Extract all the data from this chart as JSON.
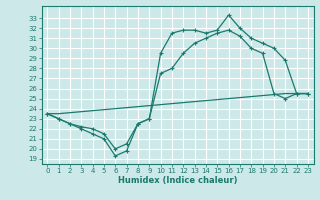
{
  "xlabel": "Humidex (Indice chaleur)",
  "bg_color": "#cde8e8",
  "grid_color": "#ffffff",
  "line_color": "#1a7a6e",
  "xlim": [
    -0.5,
    23.5
  ],
  "ylim": [
    18.5,
    34.2
  ],
  "x_ticks": [
    0,
    1,
    2,
    3,
    4,
    5,
    6,
    7,
    8,
    9,
    10,
    11,
    12,
    13,
    14,
    15,
    16,
    17,
    18,
    19,
    20,
    21,
    22,
    23
  ],
  "y_ticks": [
    19,
    20,
    21,
    22,
    23,
    24,
    25,
    26,
    27,
    28,
    29,
    30,
    31,
    32,
    33
  ],
  "line_upper_x": [
    0,
    1,
    2,
    3,
    4,
    5,
    6,
    7,
    8,
    9,
    10,
    11,
    12,
    13,
    14,
    15,
    16,
    17,
    18,
    19,
    20,
    21,
    22,
    23
  ],
  "line_upper_y": [
    23.5,
    23.0,
    22.5,
    22.0,
    21.5,
    21.0,
    19.3,
    19.8,
    22.5,
    23.0,
    29.5,
    31.5,
    31.8,
    31.8,
    31.5,
    31.8,
    33.3,
    32.0,
    31.0,
    30.5,
    30.0,
    28.8,
    25.5,
    25.5
  ],
  "line_lower_x": [
    0,
    1,
    2,
    3,
    4,
    5,
    6,
    7,
    8,
    9,
    10,
    11,
    12,
    13,
    14,
    15,
    16,
    17,
    18,
    19,
    20,
    21,
    22,
    23
  ],
  "line_lower_y": [
    23.5,
    23.0,
    22.5,
    22.2,
    22.0,
    21.5,
    20.0,
    20.5,
    22.5,
    23.0,
    27.5,
    28.0,
    29.5,
    30.5,
    31.0,
    31.5,
    31.8,
    31.2,
    30.0,
    29.5,
    25.5,
    25.0,
    25.5,
    25.5
  ],
  "line_diag_x": [
    0,
    1,
    2,
    3,
    4,
    5,
    6,
    7,
    8,
    9,
    10,
    11,
    12,
    13,
    14,
    15,
    16,
    17,
    18,
    19,
    20,
    21,
    22,
    23
  ],
  "line_diag_y": [
    23.5,
    23.5,
    23.6,
    23.7,
    23.8,
    23.9,
    24.0,
    24.1,
    24.2,
    24.3,
    24.4,
    24.5,
    24.6,
    24.7,
    24.8,
    24.9,
    25.0,
    25.1,
    25.2,
    25.3,
    25.4,
    25.5,
    25.5,
    25.5
  ]
}
